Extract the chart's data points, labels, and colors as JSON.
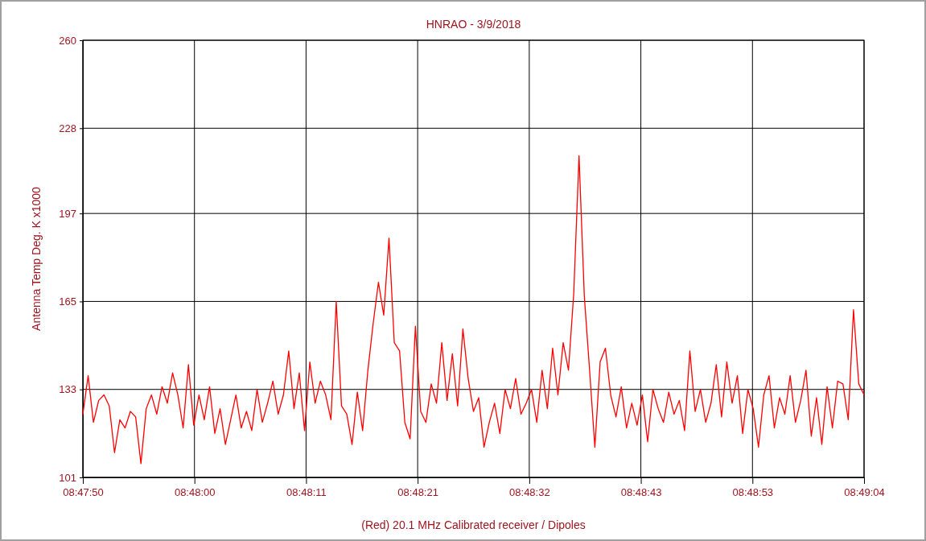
{
  "chart_data": {
    "type": "line",
    "title": "HNRAO - 3/9/2018",
    "xlabel": "(Red) 20.1 MHz Calibrated receiver / Dipoles",
    "ylabel": "Antenna Temp Deg. K x1000",
    "x": [
      "2018-03-09T08:47:50",
      "2018-03-09T08:47:50.5",
      "2018-03-09T08:47:51",
      "2018-03-09T08:47:51.5",
      "2018-03-09T08:47:52",
      "2018-03-09T08:47:52.5",
      "2018-03-09T08:47:53",
      "2018-03-09T08:47:53.5",
      "2018-03-09T08:47:54",
      "2018-03-09T08:47:54.5",
      "2018-03-09T08:47:55",
      "2018-03-09T08:47:55.5",
      "2018-03-09T08:47:56",
      "2018-03-09T08:47:56.5",
      "2018-03-09T08:47:57",
      "2018-03-09T08:47:57.5",
      "2018-03-09T08:47:58",
      "2018-03-09T08:47:58.5",
      "2018-03-09T08:47:59",
      "2018-03-09T08:47:59.5",
      "2018-03-09T08:48:00",
      "2018-03-09T08:48:00.5",
      "2018-03-09T08:48:01",
      "2018-03-09T08:48:01.5",
      "2018-03-09T08:48:02",
      "2018-03-09T08:48:02.5",
      "2018-03-09T08:48:03",
      "2018-03-09T08:48:03.5",
      "2018-03-09T08:48:04",
      "2018-03-09T08:48:04.5",
      "2018-03-09T08:48:05",
      "2018-03-09T08:48:05.5",
      "2018-03-09T08:48:06",
      "2018-03-09T08:48:06.5",
      "2018-03-09T08:48:07",
      "2018-03-09T08:48:07.5",
      "2018-03-09T08:48:08",
      "2018-03-09T08:48:08.5",
      "2018-03-09T08:48:09",
      "2018-03-09T08:48:09.5",
      "2018-03-09T08:48:10",
      "2018-03-09T08:48:10.5",
      "2018-03-09T08:48:11",
      "2018-03-09T08:48:11.5",
      "2018-03-09T08:48:12",
      "2018-03-09T08:48:12.5",
      "2018-03-09T08:48:13",
      "2018-03-09T08:48:13.5",
      "2018-03-09T08:48:14",
      "2018-03-09T08:48:14.5",
      "2018-03-09T08:48:15",
      "2018-03-09T08:48:15.5",
      "2018-03-09T08:48:16",
      "2018-03-09T08:48:16.5",
      "2018-03-09T08:48:17",
      "2018-03-09T08:48:17.5",
      "2018-03-09T08:48:18",
      "2018-03-09T08:48:18.5",
      "2018-03-09T08:48:19",
      "2018-03-09T08:48:19.5",
      "2018-03-09T08:48:20",
      "2018-03-09T08:48:20.5",
      "2018-03-09T08:48:21",
      "2018-03-09T08:48:21.5",
      "2018-03-09T08:48:22",
      "2018-03-09T08:48:22.5",
      "2018-03-09T08:48:23",
      "2018-03-09T08:48:23.5",
      "2018-03-09T08:48:24",
      "2018-03-09T08:48:24.5",
      "2018-03-09T08:48:25",
      "2018-03-09T08:48:25.5",
      "2018-03-09T08:48:26",
      "2018-03-09T08:48:26.5",
      "2018-03-09T08:48:27",
      "2018-03-09T08:48:27.5",
      "2018-03-09T08:48:28",
      "2018-03-09T08:48:28.5",
      "2018-03-09T08:48:29",
      "2018-03-09T08:48:29.5",
      "2018-03-09T08:48:30",
      "2018-03-09T08:48:30.5",
      "2018-03-09T08:48:31",
      "2018-03-09T08:48:31.5",
      "2018-03-09T08:48:32",
      "2018-03-09T08:48:32.5",
      "2018-03-09T08:48:33",
      "2018-03-09T08:48:33.5",
      "2018-03-09T08:48:34",
      "2018-03-09T08:48:34.5",
      "2018-03-09T08:48:35",
      "2018-03-09T08:48:35.5",
      "2018-03-09T08:48:36",
      "2018-03-09T08:48:36.5",
      "2018-03-09T08:48:37",
      "2018-03-09T08:48:37.5",
      "2018-03-09T08:48:38",
      "2018-03-09T08:48:38.5",
      "2018-03-09T08:48:39",
      "2018-03-09T08:48:39.5",
      "2018-03-09T08:48:40",
      "2018-03-09T08:48:40.5",
      "2018-03-09T08:48:41",
      "2018-03-09T08:48:41.5",
      "2018-03-09T08:48:42",
      "2018-03-09T08:48:42.5",
      "2018-03-09T08:48:43",
      "2018-03-09T08:48:43.5",
      "2018-03-09T08:48:44",
      "2018-03-09T08:48:44.5",
      "2018-03-09T08:48:45",
      "2018-03-09T08:48:45.5",
      "2018-03-09T08:48:46",
      "2018-03-09T08:48:46.5",
      "2018-03-09T08:48:47",
      "2018-03-09T08:48:47.5",
      "2018-03-09T08:48:48",
      "2018-03-09T08:48:48.5",
      "2018-03-09T08:48:49",
      "2018-03-09T08:48:49.5",
      "2018-03-09T08:48:50",
      "2018-03-09T08:48:50.5",
      "2018-03-09T08:48:51",
      "2018-03-09T08:48:51.5",
      "2018-03-09T08:48:52",
      "2018-03-09T08:48:52.5",
      "2018-03-09T08:48:53",
      "2018-03-09T08:48:53.5",
      "2018-03-09T08:48:54",
      "2018-03-09T08:48:54.5",
      "2018-03-09T08:48:55",
      "2018-03-09T08:48:55.5",
      "2018-03-09T08:48:56",
      "2018-03-09T08:48:56.5",
      "2018-03-09T08:48:57",
      "2018-03-09T08:48:57.5",
      "2018-03-09T08:48:58",
      "2018-03-09T08:48:58.5",
      "2018-03-09T08:48:59",
      "2018-03-09T08:48:59.5",
      "2018-03-09T08:49:00",
      "2018-03-09T08:49:00.5",
      "2018-03-09T08:49:01",
      "2018-03-09T08:49:01.5",
      "2018-03-09T08:49:02",
      "2018-03-09T08:49:02.5",
      "2018-03-09T08:49:03",
      "2018-03-09T08:49:03.5",
      "2018-03-09T08:49:04"
    ],
    "series": [
      {
        "color": "#ff0000",
        "values": [
          124,
          138,
          121,
          129,
          131,
          127,
          110,
          122,
          119,
          125,
          123,
          106,
          126,
          131,
          124,
          134,
          128,
          139,
          131,
          119,
          142,
          120,
          131,
          122,
          134,
          117,
          126,
          113,
          122,
          131,
          119,
          125,
          118,
          133,
          121,
          128,
          136,
          124,
          131,
          147,
          126,
          139,
          118,
          143,
          128,
          136,
          131,
          122,
          165,
          127,
          124,
          113,
          132,
          118,
          140,
          157,
          172,
          160,
          188,
          150,
          147,
          121,
          115,
          156,
          125,
          121,
          135,
          128,
          150,
          129,
          146,
          127,
          155,
          137,
          125,
          130,
          112,
          121,
          128,
          117,
          133,
          126,
          137,
          124,
          128,
          133,
          121,
          140,
          126,
          148,
          131,
          150,
          140,
          168,
          218,
          167,
          140,
          112,
          143,
          148,
          131,
          123,
          134,
          119,
          128,
          120,
          131,
          114,
          133,
          126,
          121,
          132,
          124,
          129,
          118,
          147,
          125,
          133,
          121,
          128,
          142,
          123,
          143,
          128,
          138,
          117,
          133,
          126,
          112,
          131,
          138,
          119,
          130,
          124,
          138,
          121,
          129,
          140,
          116,
          130,
          113,
          134,
          119,
          136,
          135,
          122,
          162,
          135,
          131
        ]
      }
    ],
    "xlim": [
      "2018-03-09T08:47:50",
      "2018-03-09T08:49:04"
    ],
    "xticks": [
      {
        "value": "2018-03-09T08:47:50",
        "label": "08:47:50"
      },
      {
        "value": "2018-03-09T08:48:00.571",
        "label": "08:48:00"
      },
      {
        "value": "2018-03-09T08:48:11.143",
        "label": "08:48:11"
      },
      {
        "value": "2018-03-09T08:48:21.714",
        "label": "08:48:21"
      },
      {
        "value": "2018-03-09T08:48:32.286",
        "label": "08:48:32"
      },
      {
        "value": "2018-03-09T08:48:42.857",
        "label": "08:48:43"
      },
      {
        "value": "2018-03-09T08:48:53.429",
        "label": "08:48:53"
      },
      {
        "value": "2018-03-09T08:49:04",
        "label": "08:49:04"
      }
    ],
    "ylim": [
      101,
      260
    ],
    "yticks": [
      101,
      133,
      165,
      197,
      228,
      260
    ],
    "grid": true,
    "marker": "none",
    "line_style": "solid"
  }
}
